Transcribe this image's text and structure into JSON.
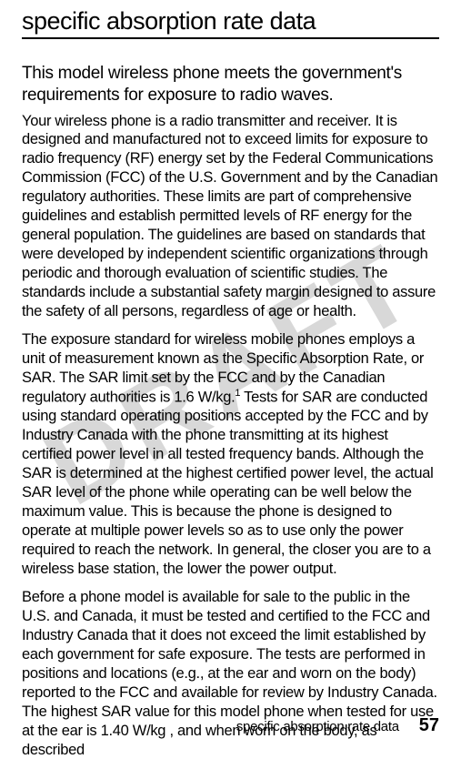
{
  "watermark": "DRAFT",
  "page_title": "specific absorption rate data",
  "subtitle": "This model wireless phone meets the government's requirements for exposure to radio waves.",
  "paragraph1": "Your wireless phone is a radio transmitter and receiver. It is designed and manufactured not to exceed limits for exposure to radio frequency (RF) energy set by the Federal Communications Commission (FCC) of the U.S. Government and by the Canadian regulatory authorities. These limits are part of comprehensive guidelines and establish permitted levels of RF energy for the general population. The guidelines are based on standards that were developed by independent scientific organizations through periodic and thorough evaluation of scientific studies. The standards include a substantial safety margin designed to assure the safety of all persons, regardless of age or health.",
  "paragraph2_part1": "The exposure standard for wireless mobile phones employs a unit of measurement known as the Specific Absorption Rate, or SAR. The SAR limit set by the FCC and by the Canadian regulatory authorities is 1.6 W/kg.",
  "paragraph2_footnote": "1",
  "paragraph2_part2": " Tests for SAR are conducted using standard operating positions accepted by the FCC and by Industry Canada with the phone transmitting at its highest certified power level in all tested frequency bands. Although the SAR is determined at the highest certified power level, the actual SAR level of the phone while operating can be well below the maximum value. This is because the phone is designed to operate at multiple power levels so as to use only the power required to reach the network. In general, the closer you are to a wireless base station, the lower the power output.",
  "paragraph3": "Before a phone model is available for sale to the public in the U.S. and Canada, it must be tested and certified to the FCC and Industry Canada that it does not exceed the limit established by each government for safe exposure. The tests are performed in positions and locations (e.g., at the ear and worn on the body) reported to the FCC and available for review by Industry Canada. The highest SAR value for this model phone when tested for use at the ear is 1.40 W/kg , and when worn on the body, as described",
  "footer_text": "specific absorption rate data",
  "page_number": "57"
}
